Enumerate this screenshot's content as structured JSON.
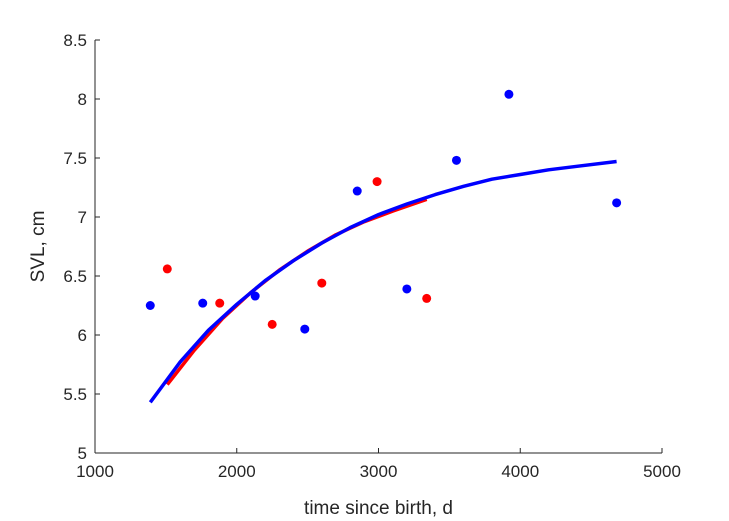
{
  "chart_data": {
    "type": "scatter",
    "title": "",
    "xlabel": "time since birth, d",
    "ylabel": "SVL, cm",
    "xlim": [
      1000,
      5000
    ],
    "ylim": [
      5,
      8.5
    ],
    "xticks": [
      1000,
      2000,
      3000,
      4000,
      5000
    ],
    "yticks": [
      5,
      5.5,
      6,
      6.5,
      7,
      7.5,
      8,
      8.5
    ],
    "xtick_labels": [
      "1000",
      "2000",
      "3000",
      "4000",
      "5000"
    ],
    "ytick_labels": [
      "5",
      "5.5",
      "6",
      "6.5",
      "7",
      "7.5",
      "8",
      "8.5"
    ],
    "grid": false,
    "scatter_series": [
      {
        "color": "#0000ff",
        "points": [
          [
            1390,
            6.25
          ],
          [
            1760,
            6.27
          ],
          [
            2130,
            6.33
          ],
          [
            2480,
            6.05
          ],
          [
            2850,
            7.22
          ],
          [
            3200,
            6.39
          ],
          [
            3550,
            7.48
          ],
          [
            3920,
            8.04
          ],
          [
            4680,
            7.12
          ]
        ]
      },
      {
        "color": "#ff0000",
        "points": [
          [
            1510,
            6.56
          ],
          [
            1880,
            6.27
          ],
          [
            2250,
            6.09
          ],
          [
            2600,
            6.44
          ],
          [
            2990,
            7.3
          ],
          [
            3340,
            6.31
          ]
        ]
      }
    ],
    "curve_series": [
      {
        "color": "#ff0000",
        "points": [
          [
            1510,
            5.58
          ],
          [
            1700,
            5.87
          ],
          [
            1900,
            6.14
          ],
          [
            2100,
            6.36
          ],
          [
            2300,
            6.55
          ],
          [
            2500,
            6.71
          ],
          [
            2700,
            6.85
          ],
          [
            2900,
            6.96
          ],
          [
            3100,
            7.05
          ],
          [
            3340,
            7.15
          ]
        ]
      },
      {
        "color": "#0000ff",
        "points": [
          [
            1390,
            5.43
          ],
          [
            1600,
            5.77
          ],
          [
            1800,
            6.04
          ],
          [
            2000,
            6.26
          ],
          [
            2200,
            6.46
          ],
          [
            2400,
            6.63
          ],
          [
            2600,
            6.78
          ],
          [
            2800,
            6.91
          ],
          [
            3000,
            7.02
          ],
          [
            3200,
            7.11
          ],
          [
            3400,
            7.19
          ],
          [
            3600,
            7.26
          ],
          [
            3800,
            7.32
          ],
          [
            4000,
            7.36
          ],
          [
            4200,
            7.4
          ],
          [
            4400,
            7.43
          ],
          [
            4680,
            7.47
          ]
        ]
      }
    ]
  }
}
